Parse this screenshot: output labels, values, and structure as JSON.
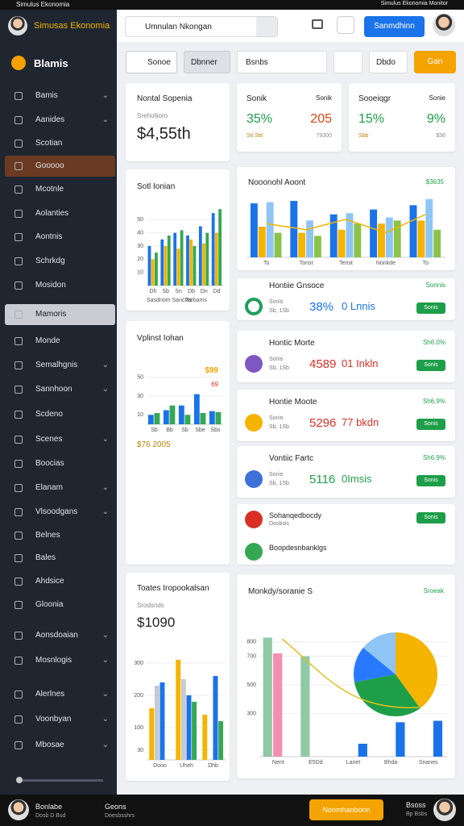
{
  "status_bar": {
    "title": "Simulus Ekonomia",
    "info": "Simulus Ekonomia Monitor"
  },
  "sidebar": {
    "user": "Simusas Ekonomia",
    "logo": "Blamis",
    "items": [
      {
        "label": "Bamis",
        "expandable": true
      },
      {
        "label": "Aanides",
        "expandable": true
      },
      {
        "label": "Scotian",
        "expandable": false
      },
      {
        "label": "Gooooo",
        "expandable": false,
        "highlight": "#6b3a22"
      },
      {
        "label": "Mcotnle",
        "expandable": false
      },
      {
        "label": "Aolanties",
        "expandable": false
      },
      {
        "label": "Aontnis",
        "expandable": false
      },
      {
        "label": "Schrkdg",
        "expandable": false
      },
      {
        "label": "Mosidon",
        "expandable": false
      },
      {
        "label": "Mamoris",
        "expandable": false,
        "highlight": "#c9ccd1"
      },
      {
        "label": "Monde",
        "expandable": false
      },
      {
        "label": "Semalhgnis",
        "expandable": true
      },
      {
        "label": "Sannhoon",
        "expandable": true
      },
      {
        "label": "Scdeno",
        "expandable": false
      },
      {
        "label": "Scenes",
        "expandable": true
      },
      {
        "label": "Boocias",
        "expandable": false
      },
      {
        "label": "Elanam",
        "expandable": true
      },
      {
        "label": "Vlsoodgans",
        "expandable": true
      },
      {
        "label": "Belnes",
        "expandable": false
      },
      {
        "label": "Bales",
        "expandable": false
      },
      {
        "label": "Ahdsice",
        "expandable": false
      },
      {
        "label": "Gloonia",
        "expandable": false
      },
      {
        "label": "Aonsdoaian",
        "expandable": true
      },
      {
        "label": "Mosnlogis",
        "expandable": true
      },
      {
        "label": "Alerlnes",
        "expandable": true
      },
      {
        "label": "Voonbyan",
        "expandable": true
      },
      {
        "label": "Mbosae",
        "expandable": true
      }
    ]
  },
  "header": {
    "search": "Umnulan Nkongan",
    "button": "Sanmdhinn"
  },
  "toolbar": {
    "select": "Sonoe",
    "dropdown": "Dbnner",
    "input": "Bsnbs",
    "dropdown2": "Dbdo",
    "button": "Gan"
  },
  "stats": [
    {
      "title": "Nontal Sopenia",
      "subtitle": "Sreholiioro",
      "value": "$4,55th"
    },
    {
      "title": "Sonik",
      "right": "Sonik",
      "value": "35%",
      "value2": "205",
      "note": "Sti Stit",
      "note2": "79300"
    },
    {
      "title": "Sooeiqgr",
      "right": "Sonie",
      "value": "15%",
      "value2": "9%",
      "note": "Sbb",
      "note2": "$36"
    }
  ],
  "charts": {
    "sotl": {
      "type": "bar",
      "title": "Sotl Ionian",
      "categories": [
        "Dh",
        "Sb",
        "Sn",
        "Db",
        "Dn",
        "Dd"
      ],
      "ylim": [
        0,
        60
      ],
      "yticks": [
        10,
        20,
        30,
        40,
        50
      ],
      "series": [
        {
          "color": "#1a73e8",
          "values": [
            30,
            35,
            40,
            38,
            45,
            55
          ]
        },
        {
          "color": "#f4b400",
          "values": [
            20,
            30,
            28,
            35,
            32,
            40
          ]
        },
        {
          "color": "#34a853",
          "values": [
            25,
            38,
            42,
            30,
            40,
            58
          ]
        }
      ],
      "legend": [
        "Sasdnom Sanclas",
        "Tarbams"
      ]
    },
    "vplinst": {
      "type": "bar",
      "title": "Vplinst Iohan",
      "categories": [
        "Sb",
        "Bb",
        "Sb",
        "Sbe",
        "Sbs"
      ],
      "ylim": [
        0,
        60
      ],
      "yticks": [
        10,
        30,
        50
      ],
      "series": [
        {
          "color": "#1a73e8",
          "values": [
            10,
            15,
            20,
            32,
            14
          ]
        },
        {
          "color": "#34a853",
          "values": [
            12,
            20,
            10,
            12,
            13
          ]
        }
      ],
      "notes": [
        "$99",
        "69",
        "$76 2005"
      ]
    },
    "toates": {
      "type": "bar",
      "title": "Toates Iropookalsan",
      "subtitle": "Srodsnds",
      "value": "$1090",
      "categories": [
        "Dooo",
        "Uheh",
        "Dhb"
      ],
      "ylim": [
        0,
        350
      ],
      "yticks": [
        30,
        100,
        200,
        300
      ],
      "series": [
        {
          "color": "#f4b400",
          "values": [
            160,
            310,
            140
          ]
        },
        {
          "color": "#c6c9cf",
          "values": [
            230,
            250,
            0
          ]
        },
        {
          "color": "#1a73e8",
          "values": [
            240,
            200,
            260
          ]
        },
        {
          "color": "#34a853",
          "values": [
            0,
            180,
            120
          ]
        }
      ]
    },
    "noon": {
      "type": "bar",
      "title": "Nooonohl Aoont",
      "value": "$3635",
      "categories": [
        "To",
        "Tonst",
        "Tenst",
        "Nonkde",
        "To"
      ],
      "ylim": [
        0,
        100
      ],
      "series": [
        {
          "color": "#1a73e8",
          "values": [
            88,
            92,
            70,
            78,
            85
          ]
        },
        {
          "color": "#f4b400",
          "values": [
            50,
            40,
            45,
            55,
            60
          ]
        },
        {
          "color": "#8ec5f5",
          "values": [
            90,
            60,
            72,
            65,
            95
          ]
        },
        {
          "color": "#8bc34a",
          "values": [
            40,
            35,
            55,
            60,
            45
          ]
        },
        {
          "color": "#f4b400",
          "type": "line",
          "values": [
            55,
            45,
            62,
            40,
            70
          ]
        }
      ]
    },
    "monk": {
      "type": "bar",
      "title": "Monkdy/soranie S",
      "right": "Sroeak",
      "categories": [
        "Nent",
        "E5Dd",
        "Lanet",
        "Bhda",
        "Snanes"
      ],
      "ylim": [
        0,
        900
      ],
      "yticks": [
        300,
        500,
        700,
        800
      ],
      "series": [
        {
          "color": "#8fc9a5",
          "values": [
            830,
            700,
            0,
            0,
            0
          ]
        },
        {
          "color": "#f48fb1",
          "values": [
            720,
            0,
            0,
            0,
            0
          ]
        },
        {
          "color": "#1a73e8",
          "values": [
            0,
            0,
            90,
            240,
            250
          ]
        }
      ],
      "pie": {
        "values": [
          40,
          32,
          14,
          14
        ],
        "colors": [
          "#f4b400",
          "#1e9e48",
          "#2979ff",
          "#8ec5f5"
        ]
      }
    }
  },
  "list": [
    {
      "title": "Hontiie Gnsoce",
      "tag": "Sonnis",
      "label": "Sonis",
      "sub": "Sb, 1Sb",
      "value": "38%",
      "value_color": "#1a73e8",
      "unit": "0 Lnnis",
      "badge": "Sonis",
      "icon_color": "#1e9e5a"
    },
    {
      "title": "Hontic Morte",
      "tag": "Sh6.0%",
      "label": "Sonis",
      "sub": "Sb, 1Sb",
      "value": "4589",
      "value_color": "#d93025",
      "unit": "01 Inkln",
      "badge": "Sonis",
      "icon_color": "#7e57c2"
    },
    {
      "title": "Hontie Moote",
      "tag": "Sh6.9%",
      "label": "Sonis",
      "sub": "Sb, 1Sb",
      "value": "5296",
      "value_color": "#d93025",
      "unit": "77 bkdn",
      "badge": "Sonis",
      "icon_color": "#f4b400"
    },
    {
      "title": "Vontiic Fartc",
      "tag": "Sh6.9%",
      "label": "Sonis",
      "sub": "Sb, 1Sb",
      "value": "5116",
      "value_color": "#1e9e48",
      "unit": "0Imsis",
      "badge": "Sonis",
      "icon_color": "#3f6fd8"
    }
  ],
  "list_extra": [
    {
      "title": "Sohanqedbocdy",
      "sub": "Dosbsis",
      "badge": "Sonis",
      "icon_color": "#d93025"
    },
    {
      "title": "Boopdesnbanklgs",
      "icon_color": "#34a853"
    }
  ],
  "bottom_bar": {
    "name": "Bonlabe",
    "sub": "Dosb D Bsd",
    "item": "Geons",
    "item_sub": "Doesbsshrs",
    "button": "Nonmhanbonn",
    "right": "Bsoss",
    "right_sub": "Bp Bsbs"
  }
}
